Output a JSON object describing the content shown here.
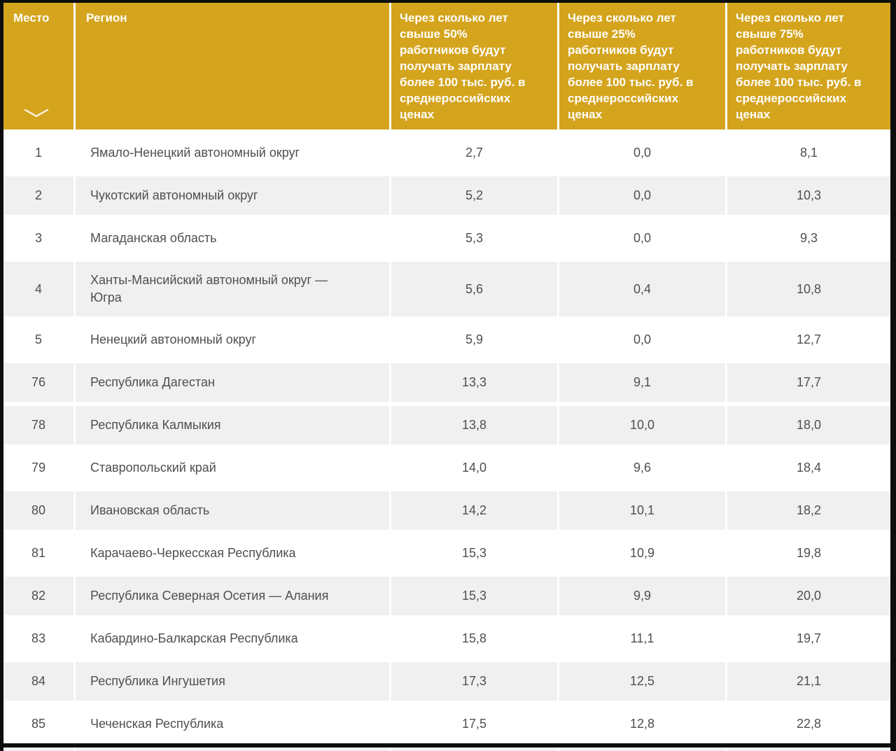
{
  "chart_data": {
    "type": "table",
    "title": "",
    "columns": [
      {
        "id": "place",
        "label": "Место",
        "sort_indicator": "chevron-down"
      },
      {
        "id": "region",
        "label": "Регион"
      },
      {
        "id": "years_to_50pct",
        "label": "Через сколько лет свыше 50% работников будут получать зарплату более 100 тыс. руб. в среднероссийских ценах",
        "label_lines": [
          "Через сколько лет",
          "свыше 50%",
          "работников будут",
          "получать зарплату",
          "более 100 тыс. руб. в",
          "среднероссийских",
          "ценах"
        ]
      },
      {
        "id": "years_to_25pct",
        "label": "Через сколько лет свыше 25% работников будут получать зарплату более 100 тыс. руб. в среднероссийских ценах",
        "label_lines": [
          "Через сколько лет",
          "свыше 25%",
          "работников будут",
          "получать зарплату",
          "более 100 тыс. руб. в",
          "среднероссийских",
          "ценах"
        ]
      },
      {
        "id": "years_to_75pct",
        "label": "Через сколько лет свыше 75% работников будут получать зарплату более 100 тыс. руб. в среднероссийских ценах",
        "label_lines": [
          "Через сколько лет",
          "свыше 75%",
          "работников будут",
          "получать зарплату",
          "более 100 тыс. руб. в",
          "среднероссийских",
          "ценах"
        ]
      }
    ],
    "rows": [
      {
        "place": "1",
        "region": "Ямало-Ненецкий автономный округ",
        "years_to_50pct": "2,7",
        "years_to_25pct": "0,0",
        "years_to_75pct": "8,1"
      },
      {
        "place": "2",
        "region": "Чукотский автономный округ",
        "years_to_50pct": "5,2",
        "years_to_25pct": "0,0",
        "years_to_75pct": "10,3"
      },
      {
        "place": "3",
        "region": "Магаданская область",
        "years_to_50pct": "5,3",
        "years_to_25pct": "0,0",
        "years_to_75pct": "9,3"
      },
      {
        "place": "4",
        "region": "Ханты-Мансийский автономный округ — Югра",
        "years_to_50pct": "5,6",
        "years_to_25pct": "0,4",
        "years_to_75pct": "10,8"
      },
      {
        "place": "5",
        "region": "Ненецкий автономный округ",
        "years_to_50pct": "5,9",
        "years_to_25pct": "0,0",
        "years_to_75pct": "12,7"
      },
      {
        "place": "76",
        "region": "Республика Дагестан",
        "years_to_50pct": "13,3",
        "years_to_25pct": "9,1",
        "years_to_75pct": "17,7"
      },
      {
        "place": "78",
        "region": "Республика Калмыкия",
        "years_to_50pct": "13,8",
        "years_to_25pct": "10,0",
        "years_to_75pct": "18,0"
      },
      {
        "place": "79",
        "region": "Ставропольский край",
        "years_to_50pct": "14,0",
        "years_to_25pct": "9,6",
        "years_to_75pct": "18,4"
      },
      {
        "place": "80",
        "region": "Ивановская область",
        "years_to_50pct": "14,2",
        "years_to_25pct": "10,1",
        "years_to_75pct": "18,2"
      },
      {
        "place": "81",
        "region": "Карачаево-Черкесская Республика",
        "years_to_50pct": "15,3",
        "years_to_25pct": "10,9",
        "years_to_75pct": "19,8"
      },
      {
        "place": "82",
        "region": "Республика Северная Осетия — Алания",
        "years_to_50pct": "15,3",
        "years_to_25pct": "9,9",
        "years_to_75pct": "20,0"
      },
      {
        "place": "83",
        "region": "Кабардино-Балкарская Республика",
        "years_to_50pct": "15,8",
        "years_to_25pct": "11,1",
        "years_to_75pct": "19,7"
      },
      {
        "place": "84",
        "region": "Республика Ингушетия",
        "years_to_50pct": "17,3",
        "years_to_25pct": "12,5",
        "years_to_75pct": "21,1"
      },
      {
        "place": "85",
        "region": "Чеченская Республика",
        "years_to_50pct": "17,5",
        "years_to_25pct": "12,8",
        "years_to_75pct": "22,8"
      }
    ],
    "layout_hints": {
      "striping_rule": "even place number = gray row, odd = white row",
      "grid": "white gaps between all cells",
      "legend_position": "none"
    }
  },
  "colors": {
    "header_bg": "#d4a41d",
    "header_text": "#ffffff",
    "row_bg": "#ffffff",
    "row_alt_bg": "#f0f0f0",
    "cell_text": "#4f4f4f",
    "frame_border": "#0d0d0d"
  },
  "icons": {
    "sort": "chevron-down"
  }
}
